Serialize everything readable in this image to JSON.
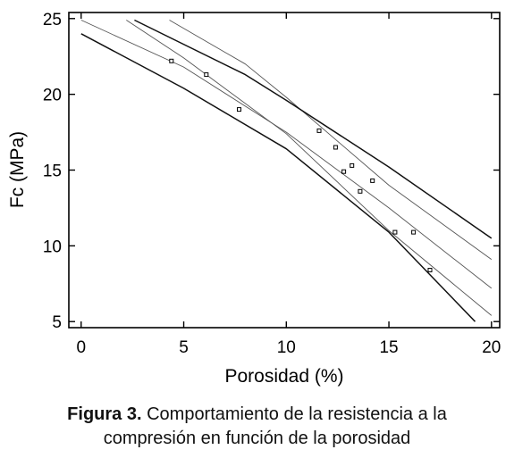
{
  "chart_data": {
    "type": "scatter",
    "title": "",
    "xlabel": "Porosidad (%)",
    "ylabel": "Fc (MPa)",
    "xlim": [
      -0.6,
      20.4
    ],
    "ylim": [
      4.6,
      25.4
    ],
    "xticks": [
      0,
      5,
      10,
      15,
      20
    ],
    "xtick_labels": [
      "0",
      "5",
      "10",
      "15",
      "20"
    ],
    "yticks": [
      5,
      10,
      15,
      20,
      25
    ],
    "ytick_labels": [
      "5",
      "10",
      "15",
      "20",
      "25"
    ],
    "grid": false,
    "legend": "none",
    "points": [
      {
        "x": 4.4,
        "y": 22.2
      },
      {
        "x": 6.1,
        "y": 21.3
      },
      {
        "x": 7.7,
        "y": 19.0
      },
      {
        "x": 11.6,
        "y": 17.6
      },
      {
        "x": 12.4,
        "y": 16.5
      },
      {
        "x": 12.8,
        "y": 14.9
      },
      {
        "x": 13.2,
        "y": 15.3
      },
      {
        "x": 13.6,
        "y": 13.6
      },
      {
        "x": 14.2,
        "y": 14.3
      },
      {
        "x": 15.3,
        "y": 10.9
      },
      {
        "x": 16.2,
        "y": 10.9
      },
      {
        "x": 17.0,
        "y": 8.4
      }
    ],
    "lines": [
      {
        "role": "fit",
        "style": "thin",
        "points": [
          [
            0,
            24.9
          ],
          [
            5,
            21.8
          ],
          [
            10,
            17.5
          ],
          [
            15,
            12.5
          ],
          [
            20,
            7.2
          ]
        ]
      },
      {
        "role": "confidence-lower",
        "style": "thin",
        "points": [
          [
            2.2,
            24.9
          ],
          [
            5,
            22.4
          ],
          [
            10,
            17.4
          ],
          [
            15,
            11.0
          ],
          [
            20,
            5.4
          ]
        ]
      },
      {
        "role": "confidence-upper",
        "style": "thin",
        "points": [
          [
            4.3,
            24.9
          ],
          [
            8,
            22.0
          ],
          [
            10,
            19.8
          ],
          [
            15,
            14.0
          ],
          [
            20,
            9.1
          ]
        ]
      },
      {
        "role": "prediction-lower",
        "style": "thick",
        "points": [
          [
            0,
            24.0
          ],
          [
            5,
            20.4
          ],
          [
            10,
            16.4
          ],
          [
            15,
            10.9
          ],
          [
            19.2,
            5.0
          ]
        ]
      },
      {
        "role": "prediction-upper",
        "style": "thick",
        "points": [
          [
            2.6,
            24.9
          ],
          [
            8,
            21.3
          ],
          [
            10,
            19.6
          ],
          [
            15,
            15.2
          ],
          [
            20,
            10.5
          ]
        ]
      }
    ]
  },
  "caption": {
    "label": "Figura 3.",
    "line1_rest": " Comportamiento de la resistencia a la",
    "line2": "compresión en función de la porosidad"
  }
}
